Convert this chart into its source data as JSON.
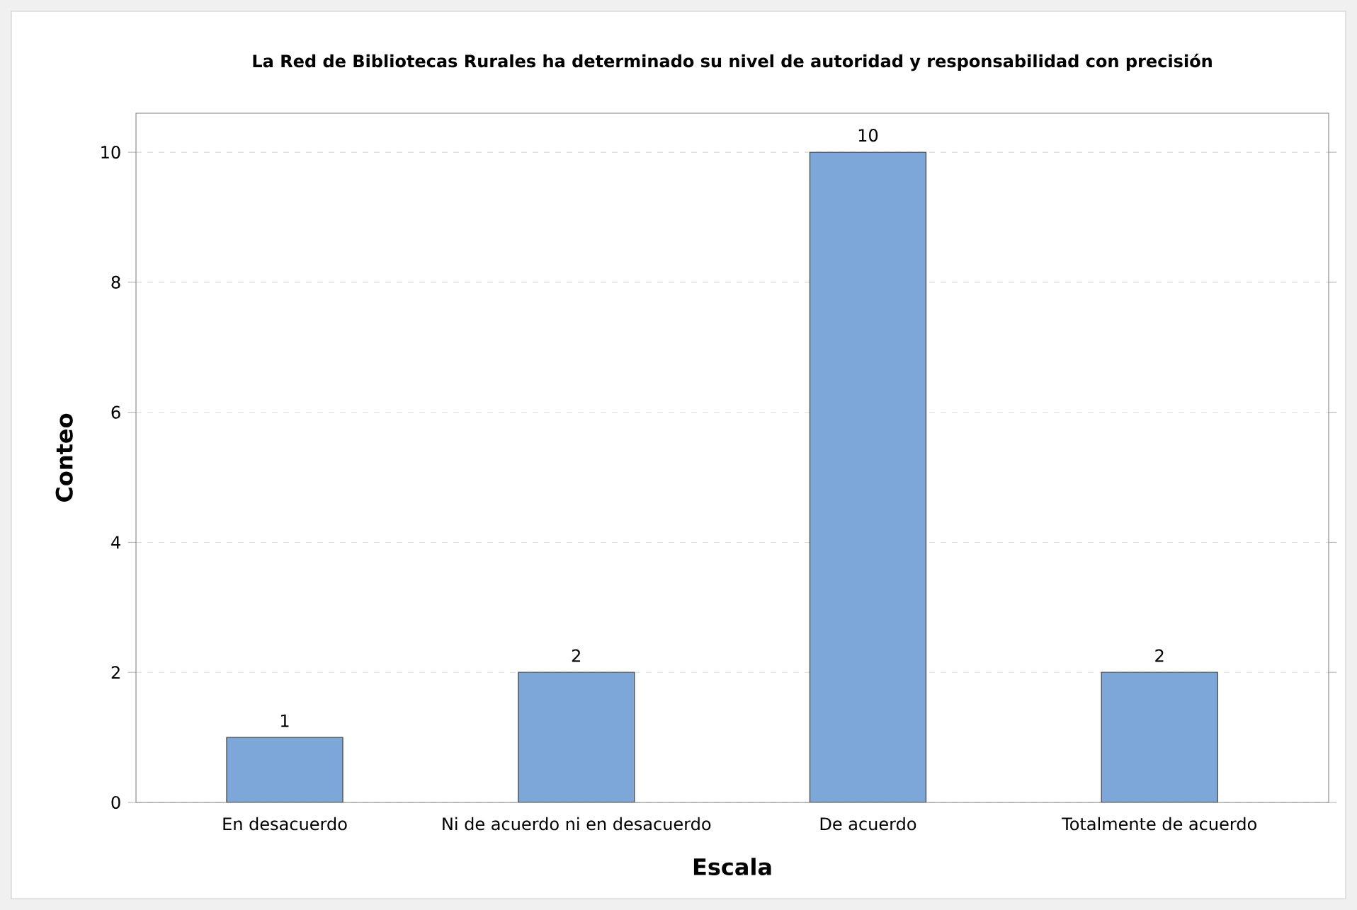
{
  "chart_data": {
    "type": "bar",
    "title": "La Red de Bibliotecas Rurales ha determinado su nivel de autoridad y responsabilidad con precisión",
    "xlabel": "Escala",
    "ylabel": "Conteo",
    "categories": [
      "En desacuerdo",
      "Ni de acuerdo ni en desacuerdo",
      "De acuerdo",
      "Totalmente de acuerdo"
    ],
    "values": [
      1,
      2,
      10,
      2
    ],
    "color": "#7da7d9",
    "ylim": [
      0,
      10.6
    ],
    "yticks": [
      0,
      2,
      4,
      6,
      8,
      10
    ],
    "grid": "y",
    "data_labels": true
  }
}
